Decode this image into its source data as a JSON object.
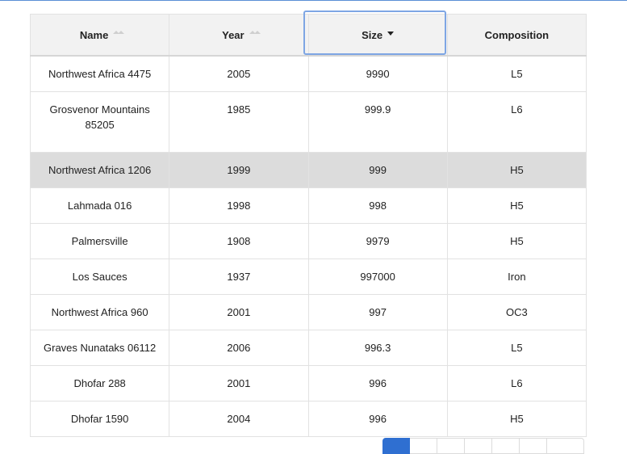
{
  "table": {
    "columns": [
      {
        "label": "Name",
        "sort": "none"
      },
      {
        "label": "Year",
        "sort": "none"
      },
      {
        "label": "Size",
        "sort": "desc"
      },
      {
        "label": "Composition",
        "sort": "none"
      }
    ],
    "rows": [
      {
        "name": "Northwest Africa 4475",
        "year": "2005",
        "size": "9990",
        "composition": "L5"
      },
      {
        "name": "Grosvenor Mountains 85205",
        "year": "1985",
        "size": "999.9",
        "composition": "L6"
      },
      {
        "name": "Northwest Africa 1206",
        "year": "1999",
        "size": "999",
        "composition": "H5"
      },
      {
        "name": "Lahmada 016",
        "year": "1998",
        "size": "998",
        "composition": "H5"
      },
      {
        "name": "Palmersville",
        "year": "1908",
        "size": "9979",
        "composition": "H5"
      },
      {
        "name": "Los Sauces",
        "year": "1937",
        "size": "997000",
        "composition": "Iron"
      },
      {
        "name": "Northwest Africa 960",
        "year": "2001",
        "size": "997",
        "composition": "OC3"
      },
      {
        "name": "Graves Nunataks 06112",
        "year": "2006",
        "size": "996.3",
        "composition": "L5"
      },
      {
        "name": "Dhofar 288",
        "year": "2001",
        "size": "996",
        "composition": "L6"
      },
      {
        "name": "Dhofar 1590",
        "year": "2004",
        "size": "996",
        "composition": "H5"
      }
    ],
    "highlighted_row": 2
  },
  "colors": {
    "header_bg": "#f2f2f2",
    "highlight_bg": "#dcdcdc",
    "focus_ring": "#7ea6e4",
    "active_page": "#2f6fd1"
  }
}
